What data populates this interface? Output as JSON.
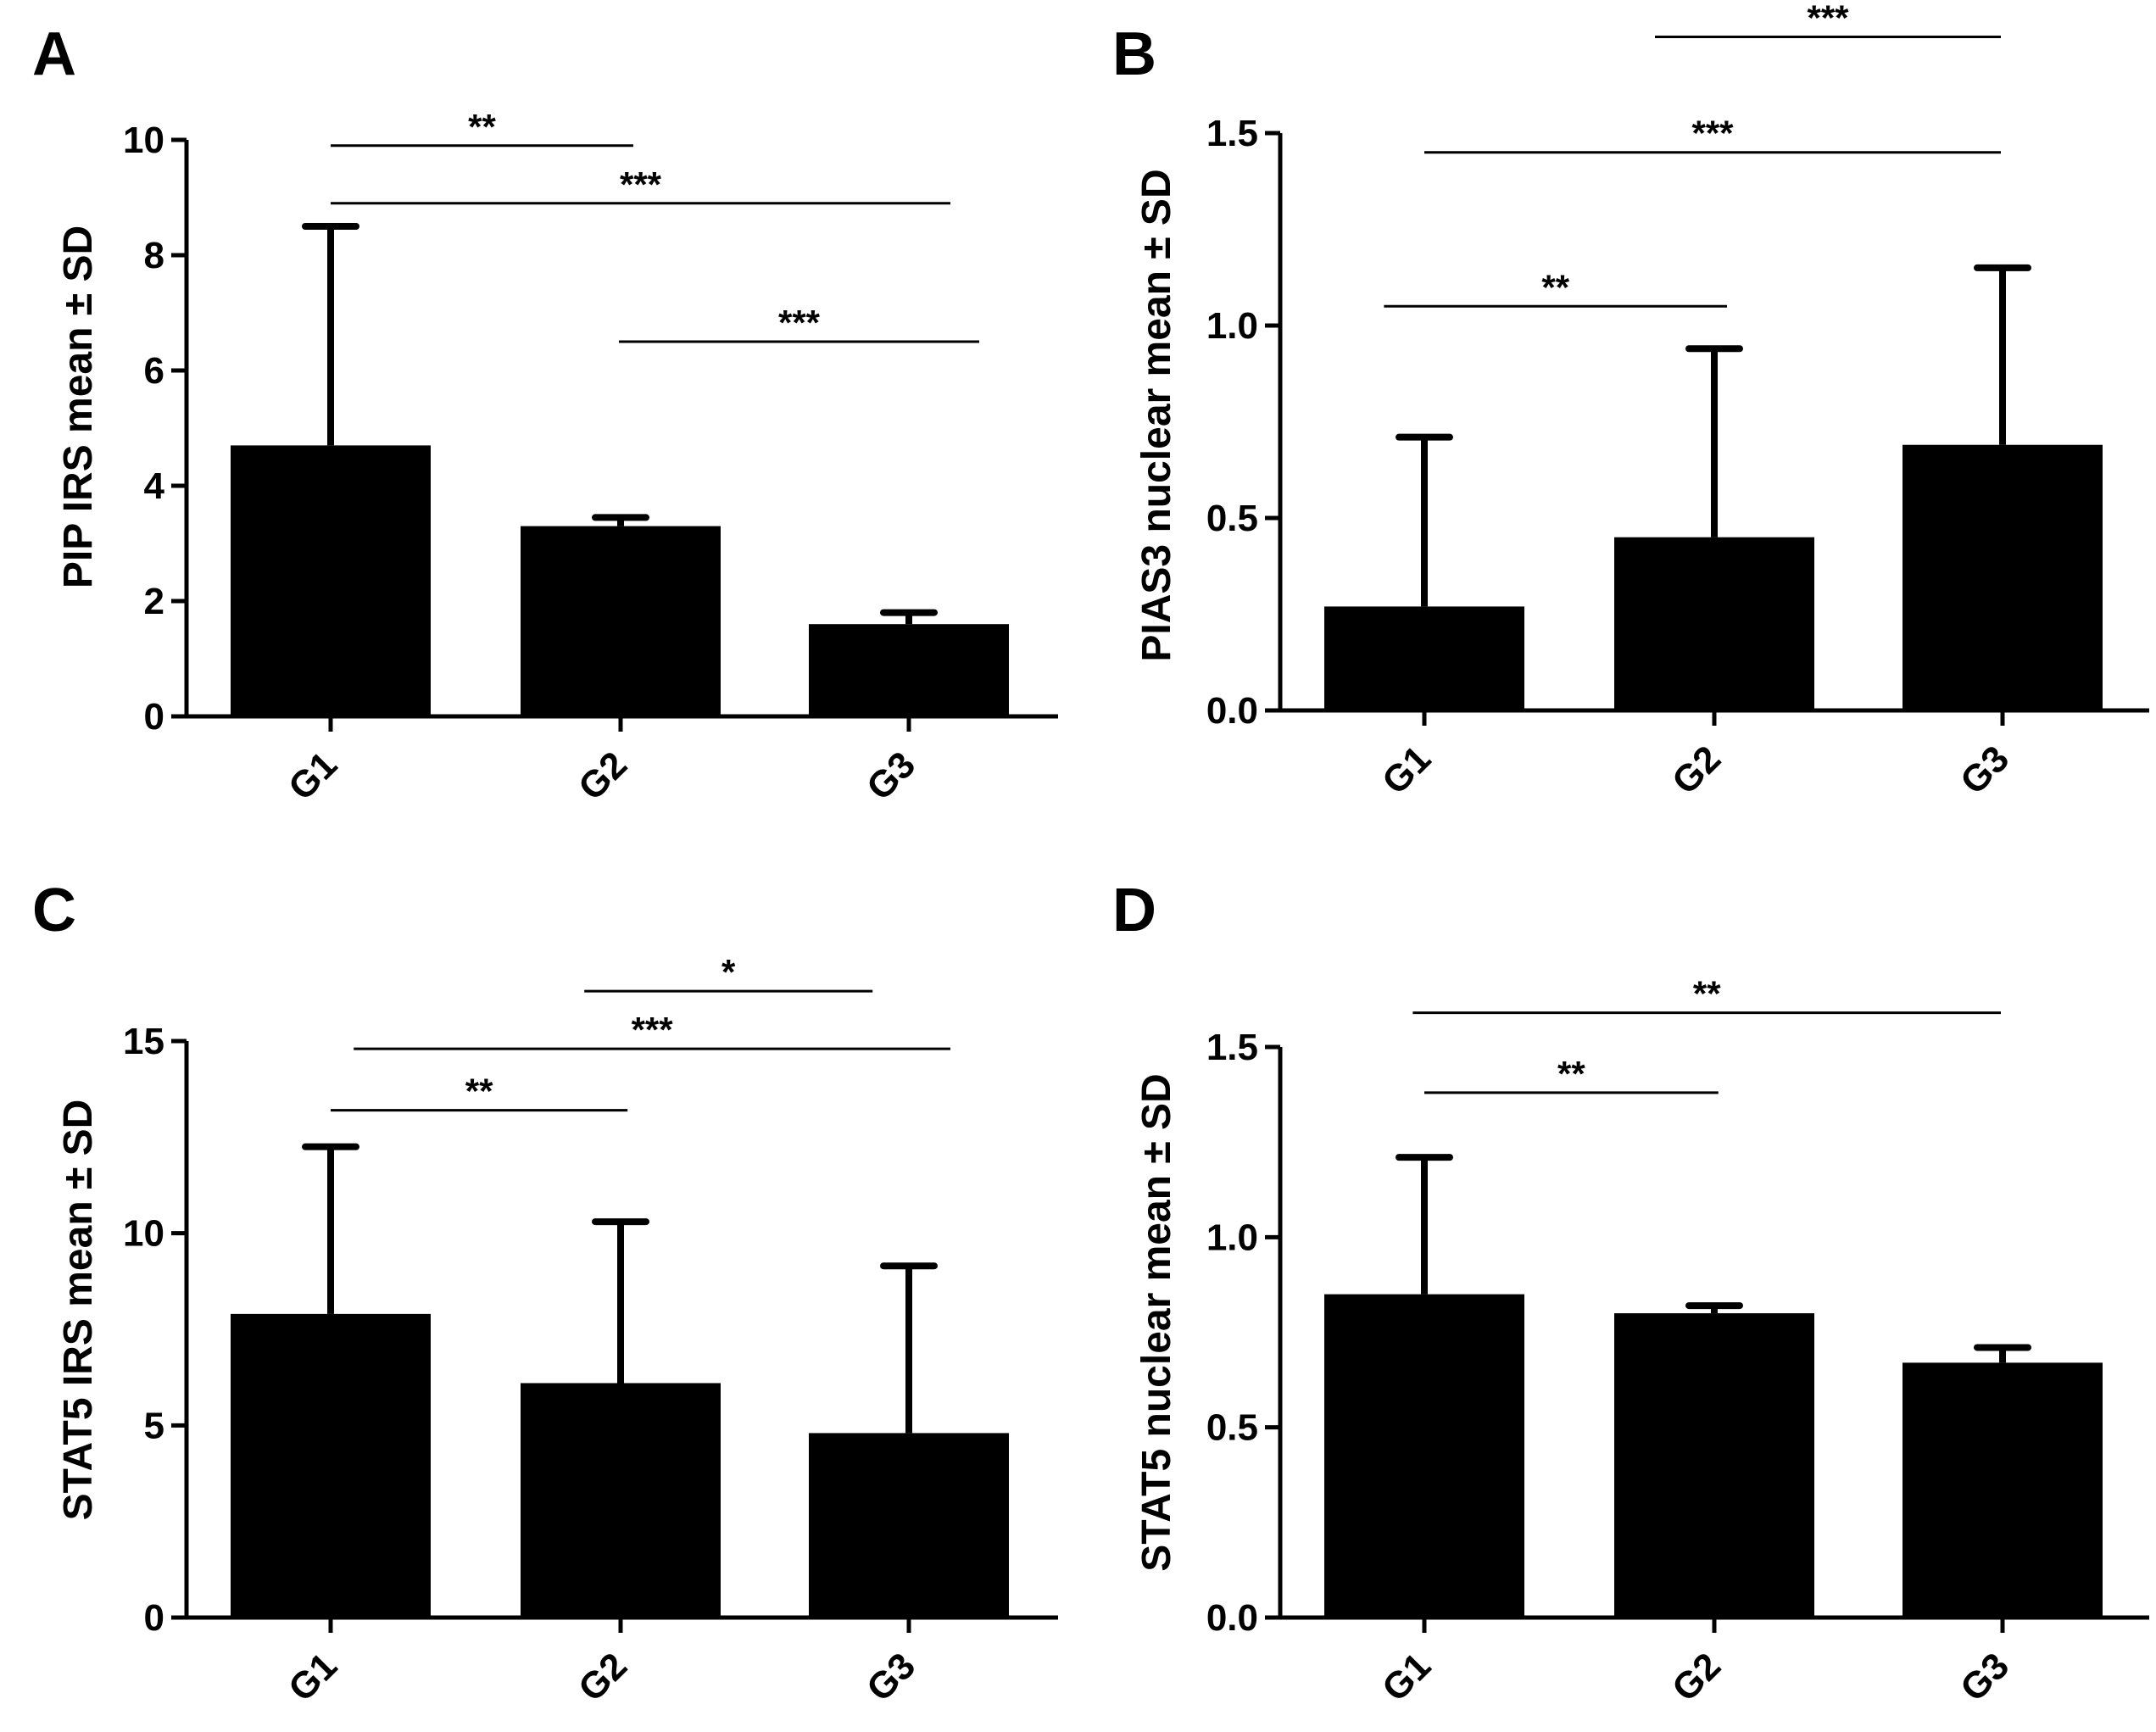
{
  "colors": {
    "bar": "#000000",
    "axis": "#000000",
    "background": "#ffffff"
  },
  "chart_data": [
    {
      "panel": "A",
      "type": "bar",
      "categories": [
        "G1",
        "G2",
        "G3"
      ],
      "values": [
        4.7,
        3.3,
        1.6
      ],
      "errors": [
        3.8,
        0.15,
        0.2
      ],
      "ylabel": "PIP IRS mean ± SD",
      "ylim": [
        0,
        10
      ],
      "yticks": [
        0,
        2,
        4,
        6,
        8,
        10
      ],
      "significance": [
        {
          "from": 0,
          "to": 1.05,
          "level": 9.9,
          "label": "**"
        },
        {
          "from": 0,
          "to": 2.15,
          "level": 8.9,
          "label": "***"
        },
        {
          "from": 1,
          "to": 2.25,
          "level": 6.5,
          "label": "***"
        }
      ]
    },
    {
      "panel": "B",
      "type": "bar",
      "categories": [
        "G1",
        "G2",
        "G3"
      ],
      "values": [
        0.27,
        0.45,
        0.69
      ],
      "errors": [
        0.44,
        0.49,
        0.46
      ],
      "ylabel": "PIAS3 nuclear  mean ± SD",
      "ylim": [
        0,
        1.5
      ],
      "yticks": [
        0.0,
        0.5,
        1.0,
        1.5
      ],
      "significance": [
        {
          "from": 0.8,
          "to": 2.0,
          "level": 1.75,
          "label": "***"
        },
        {
          "from": 0,
          "to": 2.0,
          "level": 1.45,
          "label": "***"
        },
        {
          "from": -0.14,
          "to": 1.05,
          "level": 1.05,
          "label": "**"
        }
      ]
    },
    {
      "panel": "C",
      "type": "bar",
      "categories": [
        "G1",
        "G2",
        "G3"
      ],
      "values": [
        7.9,
        6.1,
        4.8
      ],
      "errors": [
        4.35,
        4.2,
        4.35
      ],
      "ylabel": "STAT5 IRS  mean ± SD",
      "ylim": [
        0,
        15
      ],
      "yticks": [
        0,
        5,
        10,
        15
      ],
      "significance": [
        {
          "from": 0.88,
          "to": 1.88,
          "level": 16.3,
          "label": "*"
        },
        {
          "from": 0.08,
          "to": 2.15,
          "level": 14.8,
          "label": "***"
        },
        {
          "from": 0,
          "to": 1.03,
          "level": 13.2,
          "label": "**"
        }
      ]
    },
    {
      "panel": "D",
      "type": "bar",
      "categories": [
        "G1",
        "G2",
        "G3"
      ],
      "values": [
        0.85,
        0.8,
        0.67
      ],
      "errors": [
        0.36,
        0.02,
        0.04
      ],
      "ylabel": "STAT5 nuclear mean ± SD",
      "ylim": [
        0,
        1.5
      ],
      "yticks": [
        0.0,
        0.5,
        1.0,
        1.5
      ],
      "significance": [
        {
          "from": -0.04,
          "to": 2.0,
          "level": 1.59,
          "label": "**"
        },
        {
          "from": 0,
          "to": 1.02,
          "level": 1.38,
          "label": "**"
        }
      ]
    }
  ]
}
